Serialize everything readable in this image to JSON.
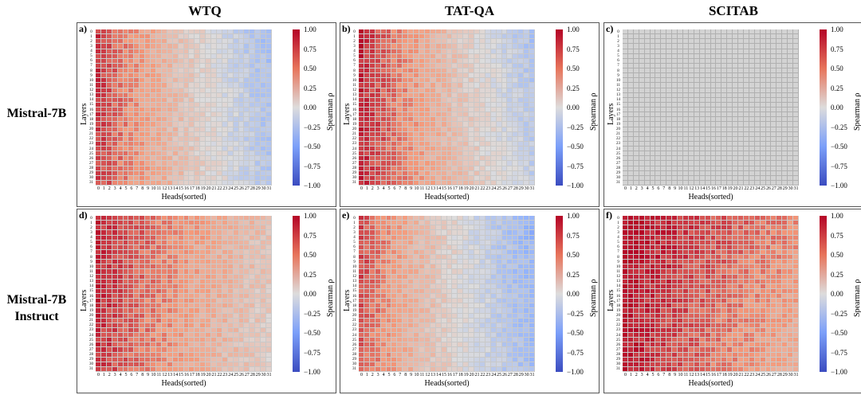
{
  "columns": [
    "WTQ",
    "TAT-QA",
    "SCITAB"
  ],
  "rows": [
    "Mistral-7B",
    "Mistral-7B\nInstruct"
  ],
  "panel_letters": [
    "a)",
    "b)",
    "c)",
    "d)",
    "e)",
    "f)"
  ],
  "xlabel": "Heads(sorted)",
  "ylabel": "Layers",
  "colorbar_title": "Spearman ρ",
  "colorbar_ticks": [
    "1.00",
    "0.75",
    "0.50",
    "0.25",
    "0.00",
    "−0.25",
    "−0.50",
    "−0.75",
    "−1.00"
  ],
  "x_ticks": [
    "0",
    "1",
    "2",
    "3",
    "4",
    "5",
    "6",
    "7",
    "8",
    "9",
    "10",
    "11",
    "12",
    "13",
    "14",
    "15",
    "16",
    "17",
    "18",
    "19",
    "20",
    "21",
    "22",
    "23",
    "24",
    "25",
    "26",
    "27",
    "28",
    "29",
    "30",
    "31"
  ],
  "y_ticks": [
    "0",
    "1",
    "2",
    "3",
    "4",
    "5",
    "6",
    "7",
    "8",
    "9",
    "10",
    "11",
    "12",
    "13",
    "14",
    "15",
    "16",
    "17",
    "18",
    "19",
    "20",
    "21",
    "22",
    "23",
    "24",
    "25",
    "26",
    "27",
    "28",
    "29",
    "30",
    "31"
  ],
  "chart_data": [
    {
      "type": "heatmap",
      "panel": "a)",
      "model": "Mistral-7B",
      "dataset": "WTQ",
      "xlabel": "Heads(sorted)",
      "ylabel": "Layers",
      "zlim": [
        -1,
        1
      ],
      "pattern": {
        "left": 0.85,
        "right": -0.25,
        "top_right": -0.35,
        "bottom_left": 0.8
      }
    },
    {
      "type": "heatmap",
      "panel": "b)",
      "model": "Mistral-7B",
      "dataset": "TAT-QA",
      "xlabel": "Heads(sorted)",
      "ylabel": "Layers",
      "zlim": [
        -1,
        1
      ],
      "pattern": {
        "left": 0.9,
        "right": -0.15,
        "top_right": -0.3,
        "bottom_left": 0.9
      }
    },
    {
      "type": "heatmap",
      "panel": "c)",
      "model": "Mistral-7B",
      "dataset": "SCITAB",
      "xlabel": "Heads(sorted)",
      "ylabel": "Layers",
      "zlim": [
        -1,
        1
      ],
      "pattern": {
        "empty": true
      }
    },
    {
      "type": "heatmap",
      "panel": "d)",
      "model": "Mistral-7B Instruct",
      "dataset": "WTQ",
      "xlabel": "Heads(sorted)",
      "ylabel": "Layers",
      "zlim": [
        -1,
        1
      ],
      "pattern": {
        "left": 0.9,
        "right": 0.1,
        "top_right": 0.2,
        "bottom_left": 0.85
      }
    },
    {
      "type": "heatmap",
      "panel": "e)",
      "model": "Mistral-7B Instruct",
      "dataset": "TAT-QA",
      "xlabel": "Heads(sorted)",
      "ylabel": "Layers",
      "zlim": [
        -1,
        1
      ],
      "pattern": {
        "left": 0.8,
        "right": -0.35,
        "top_right": -0.45,
        "bottom_left": 0.7
      }
    },
    {
      "type": "heatmap",
      "panel": "f)",
      "model": "Mistral-7B Instruct",
      "dataset": "SCITAB",
      "xlabel": "Heads(sorted)",
      "ylabel": "Layers",
      "zlim": [
        -1,
        1
      ],
      "pattern": {
        "left": 1.0,
        "right": 0.35,
        "top_right": 0.55,
        "bottom_left": 0.95
      }
    }
  ]
}
